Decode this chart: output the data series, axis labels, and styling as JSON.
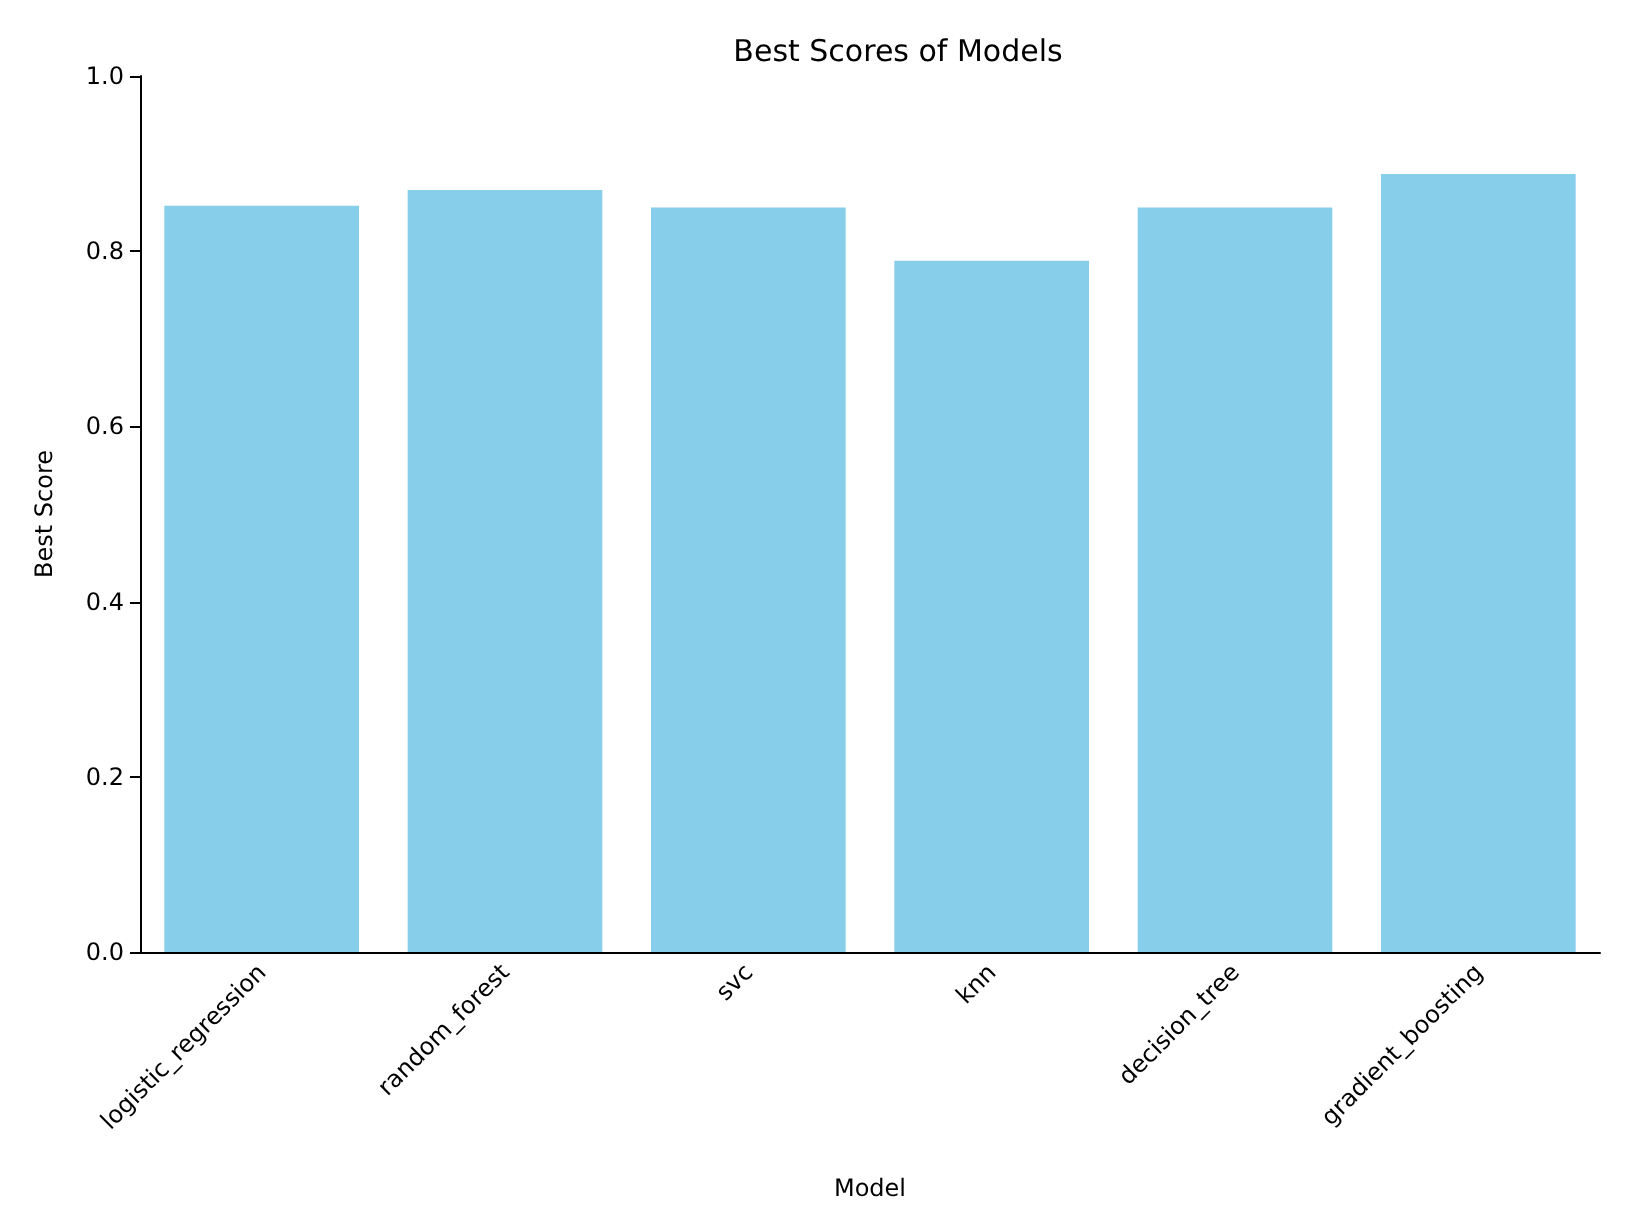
{
  "chart_data": {
    "type": "bar",
    "title": "Best Scores of Models",
    "xlabel": "Model",
    "ylabel": "Best Score",
    "categories": [
      "logistic_regression",
      "random_forest",
      "svc",
      "knn",
      "decision_tree",
      "gradient_boosting"
    ],
    "values": [
      0.852,
      0.87,
      0.85,
      0.789,
      0.85,
      0.888
    ],
    "color": "#87ceeb",
    "ylim": [
      0,
      1
    ],
    "yticks": [
      {
        "value": 0,
        "label": "0.0"
      },
      {
        "value": 0.2,
        "label": "0.2"
      },
      {
        "value": 0.4,
        "label": "0.4"
      },
      {
        "value": 0.6,
        "label": "0.6"
      },
      {
        "value": 0.8,
        "label": "0.8"
      },
      {
        "value": 1,
        "label": "1.0"
      }
    ],
    "grid": false
  }
}
